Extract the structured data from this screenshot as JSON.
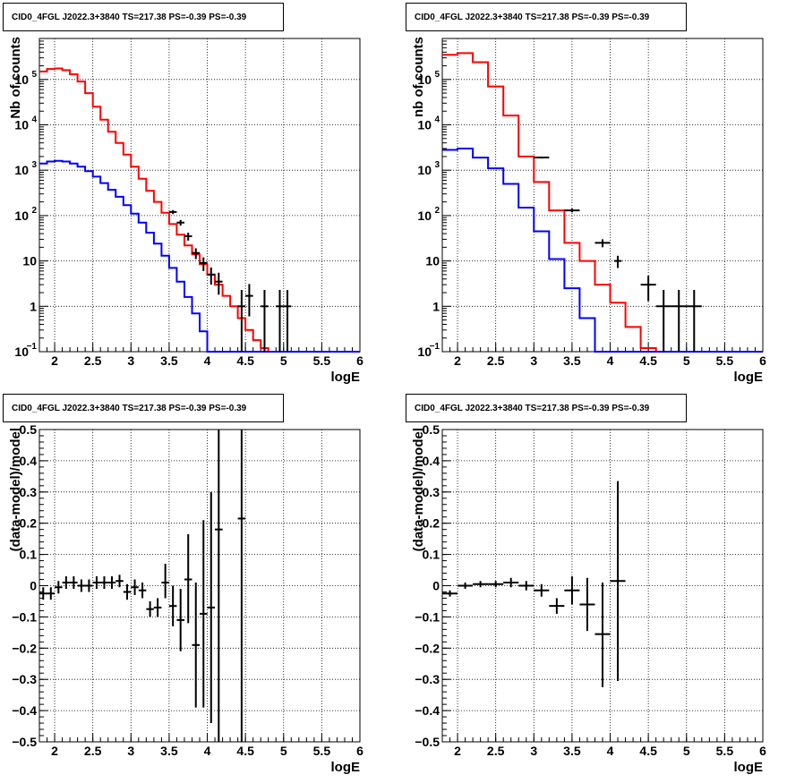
{
  "chart_data": [
    {
      "id": "spectrum_left",
      "type": "line",
      "title": "CID0_4FGL J2022.3+3840 TS=217.38 PS=-0.39 PS=-0.39",
      "xlabel": "logE",
      "ylabel": "Nb of counts",
      "xlim": [
        1.8,
        6.0
      ],
      "ylim": [
        0.1,
        800000
      ],
      "yscale": "log",
      "grid": true,
      "x_ticks": [
        "2",
        "2.5",
        "3",
        "3.5",
        "4",
        "4.5",
        "5",
        "5.5",
        "6"
      ],
      "y_ticks": [
        {
          "value": 0.1,
          "label": "10",
          "sup": "−1"
        },
        {
          "value": 1,
          "label": "1",
          "sup": ""
        },
        {
          "value": 10,
          "label": "10",
          "sup": ""
        },
        {
          "value": 100,
          "label": "10",
          "sup": "2"
        },
        {
          "value": 1000,
          "label": "10",
          "sup": "3"
        },
        {
          "value": 10000,
          "label": "10",
          "sup": "4"
        },
        {
          "value": 100000,
          "label": "10",
          "sup": "5"
        }
      ],
      "bin_edges": [
        1.8,
        1.9,
        2.0,
        2.1,
        2.2,
        2.3,
        2.4,
        2.5,
        2.6,
        2.7,
        2.8,
        2.9,
        3.0,
        3.1,
        3.2,
        3.3,
        3.4,
        3.5,
        3.6,
        3.7,
        3.8,
        3.9,
        4.0,
        4.1,
        4.2,
        4.3,
        4.4,
        4.5,
        4.6,
        4.7,
        4.8,
        4.9,
        5.0,
        5.1,
        5.2,
        5.3,
        5.4,
        5.5,
        5.6,
        5.7,
        5.8,
        5.9,
        6.0
      ],
      "series": [
        {
          "name": "",
          "color": "#ff0000",
          "style": "hist",
          "values": [
            150000,
            170000,
            175000,
            160000,
            130000,
            90000,
            50000,
            25000,
            13000,
            7000,
            4000,
            2200,
            1200,
            650,
            350,
            200,
            115,
            65,
            38,
            22,
            14,
            8.5,
            5,
            3,
            1.7,
            1,
            0.55,
            0.3,
            0.18,
            0.12,
            0.1,
            0.1,
            0.1,
            0.1,
            0.1,
            0.1,
            0.1,
            0.1,
            0.1,
            0.1,
            0.1,
            0.1
          ]
        },
        {
          "name": "",
          "color": "#0000ff",
          "style": "hist",
          "values": [
            1400,
            1550,
            1600,
            1550,
            1400,
            1200,
            950,
            720,
            520,
            370,
            260,
            170,
            110,
            70,
            42,
            24,
            13,
            7,
            3.5,
            1.6,
            0.7,
            0.28,
            0.1,
            0.1,
            0.1,
            0.1,
            0.1,
            0.1,
            0.1,
            0.1,
            0.1,
            0.1,
            0.1,
            0.1,
            0.1,
            0.1,
            0.1,
            0.1,
            0.1,
            0.1,
            0.1,
            0.1
          ]
        },
        {
          "name": "",
          "color": "#000000",
          "style": "errors",
          "points": [
            {
              "x": 3.55,
              "xerr": 0.05,
              "y": 120,
              "ylo": 108,
              "yhi": 132
            },
            {
              "x": 3.65,
              "xerr": 0.05,
              "y": 70,
              "ylo": 60,
              "yhi": 80
            },
            {
              "x": 3.75,
              "xerr": 0.05,
              "y": 35,
              "ylo": 28,
              "yhi": 42
            },
            {
              "x": 3.85,
              "xerr": 0.05,
              "y": 15,
              "ylo": 11,
              "yhi": 19
            },
            {
              "x": 3.95,
              "xerr": 0.05,
              "y": 9,
              "ylo": 6,
              "yhi": 12
            },
            {
              "x": 4.05,
              "xerr": 0.05,
              "y": 5,
              "ylo": 3,
              "yhi": 7.2
            },
            {
              "x": 4.15,
              "xerr": 0.05,
              "y": 3.5,
              "ylo": 1.8,
              "yhi": 5.5
            },
            {
              "x": 4.45,
              "xerr": 0.05,
              "y": 1,
              "ylo": 0.1,
              "yhi": 2.3
            },
            {
              "x": 4.55,
              "xerr": 0.05,
              "y": 1.7,
              "ylo": 0.6,
              "yhi": 3.1
            },
            {
              "x": 4.75,
              "xerr": 0.05,
              "y": 1,
              "ylo": 0.1,
              "yhi": 2.3
            },
            {
              "x": 4.95,
              "xerr": 0.05,
              "y": 1,
              "ylo": 0.1,
              "yhi": 2.3
            },
            {
              "x": 5.05,
              "xerr": 0.05,
              "y": 1,
              "ylo": 0.1,
              "yhi": 2.3
            }
          ]
        }
      ]
    },
    {
      "id": "spectrum_right",
      "type": "line",
      "title": "CID0_4FGL J2022.3+3840 TS=217.38 PS=-0.39 PS=-0.39",
      "xlabel": "logE",
      "ylabel": "nb of counts",
      "xlim": [
        1.8,
        6.0
      ],
      "ylim": [
        0.1,
        800000
      ],
      "yscale": "log",
      "grid": true,
      "x_ticks": [
        "2",
        "2.5",
        "3",
        "3.5",
        "4",
        "4.5",
        "5",
        "5.5",
        "6"
      ],
      "y_ticks": [
        {
          "value": 0.1,
          "label": "10",
          "sup": "−1"
        },
        {
          "value": 1,
          "label": "1",
          "sup": ""
        },
        {
          "value": 10,
          "label": "10",
          "sup": ""
        },
        {
          "value": 100,
          "label": "10",
          "sup": "2"
        },
        {
          "value": 1000,
          "label": "10",
          "sup": "3"
        },
        {
          "value": 10000,
          "label": "10",
          "sup": "4"
        },
        {
          "value": 100000,
          "label": "10",
          "sup": "5"
        }
      ],
      "bin_edges": [
        1.8,
        2.0,
        2.2,
        2.4,
        2.6,
        2.8,
        3.0,
        3.2,
        3.4,
        3.6,
        3.8,
        4.0,
        4.2,
        4.4,
        4.6,
        4.8,
        5.0,
        5.2,
        5.4,
        5.6,
        5.8,
        6.0
      ],
      "series": [
        {
          "name": "",
          "color": "#ff0000",
          "style": "hist",
          "values": [
            350000,
            380000,
            240000,
            70000,
            16000,
            2000,
            550,
            130,
            25,
            10,
            3,
            1.2,
            0.35,
            0.12,
            0.1,
            0.1,
            0.1,
            0.1,
            0.1,
            0.1,
            0.1
          ]
        },
        {
          "name": "",
          "color": "#0000ff",
          "style": "hist",
          "values": [
            2800,
            3000,
            1900,
            1100,
            500,
            150,
            45,
            11,
            2.5,
            0.55,
            0.1,
            0.1,
            0.1,
            0.1,
            0.1,
            0.1,
            0.1,
            0.1,
            0.1,
            0.1,
            0.1
          ]
        },
        {
          "name": "",
          "color": "#000000",
          "style": "errors",
          "points": [
            {
              "x": 3.1,
              "xerr": 0.1,
              "y": 1900,
              "ylo": 1800,
              "yhi": 2000
            },
            {
              "x": 3.5,
              "xerr": 0.1,
              "y": 130,
              "ylo": 118,
              "yhi": 142
            },
            {
              "x": 3.9,
              "xerr": 0.1,
              "y": 25,
              "ylo": 20,
              "yhi": 30
            },
            {
              "x": 4.1,
              "xerr": 0.05,
              "y": 10,
              "ylo": 7,
              "yhi": 13
            },
            {
              "x": 4.5,
              "xerr": 0.1,
              "y": 3,
              "ylo": 1.3,
              "yhi": 4.7
            },
            {
              "x": 4.7,
              "xerr": 0.1,
              "y": 1,
              "ylo": 0.1,
              "yhi": 2.3
            },
            {
              "x": 4.9,
              "xerr": 0.1,
              "y": 1,
              "ylo": 0.1,
              "yhi": 2.3
            },
            {
              "x": 5.1,
              "xerr": 0.1,
              "y": 1,
              "ylo": 0.1,
              "yhi": 2.3
            }
          ]
        }
      ]
    },
    {
      "id": "residual_left",
      "type": "scatter",
      "title": "CID0_4FGL J2022.3+3840 TS=217.38 PS=-0.39 PS=-0.39",
      "xlabel": "logE",
      "ylabel": "(data-model)/model",
      "xlim": [
        1.8,
        6.0
      ],
      "ylim": [
        -0.5,
        0.5
      ],
      "yscale": "linear",
      "grid": true,
      "x_ticks": [
        "2",
        "2.5",
        "3",
        "3.5",
        "4",
        "4.5",
        "5",
        "5.5",
        "6"
      ],
      "y_ticks": [
        {
          "value": -0.5,
          "label": "−0.5",
          "sup": ""
        },
        {
          "value": -0.4,
          "label": "−0.4",
          "sup": ""
        },
        {
          "value": -0.3,
          "label": "−0.3",
          "sup": ""
        },
        {
          "value": -0.2,
          "label": "−0.2",
          "sup": ""
        },
        {
          "value": -0.1,
          "label": "−0.1",
          "sup": ""
        },
        {
          "value": 0,
          "label": "0",
          "sup": ""
        },
        {
          "value": 0.1,
          "label": "0.1",
          "sup": ""
        },
        {
          "value": 0.2,
          "label": "0.2",
          "sup": ""
        },
        {
          "value": 0.3,
          "label": "0.3",
          "sup": ""
        },
        {
          "value": 0.4,
          "label": "0.4",
          "sup": ""
        },
        {
          "value": 0.5,
          "label": "0.5",
          "sup": ""
        }
      ],
      "series": [
        {
          "name": "",
          "color": "#000000",
          "style": "errors",
          "points": [
            {
              "x": 1.85,
              "xerr": 0.05,
              "y": -0.025,
              "ylo": -0.045,
              "yhi": -0.005
            },
            {
              "x": 1.95,
              "xerr": 0.05,
              "y": -0.025,
              "ylo": -0.045,
              "yhi": -0.005
            },
            {
              "x": 2.05,
              "xerr": 0.05,
              "y": -0.005,
              "ylo": -0.025,
              "yhi": 0.015
            },
            {
              "x": 2.15,
              "xerr": 0.05,
              "y": 0.01,
              "ylo": -0.01,
              "yhi": 0.03
            },
            {
              "x": 2.25,
              "xerr": 0.05,
              "y": 0.01,
              "ylo": -0.01,
              "yhi": 0.03
            },
            {
              "x": 2.35,
              "xerr": 0.05,
              "y": 0.0,
              "ylo": -0.02,
              "yhi": 0.02
            },
            {
              "x": 2.45,
              "xerr": 0.05,
              "y": 0.0,
              "ylo": -0.02,
              "yhi": 0.02
            },
            {
              "x": 2.55,
              "xerr": 0.05,
              "y": 0.01,
              "ylo": -0.01,
              "yhi": 0.03
            },
            {
              "x": 2.65,
              "xerr": 0.05,
              "y": 0.01,
              "ylo": -0.01,
              "yhi": 0.03
            },
            {
              "x": 2.75,
              "xerr": 0.05,
              "y": 0.01,
              "ylo": -0.01,
              "yhi": 0.03
            },
            {
              "x": 2.85,
              "xerr": 0.05,
              "y": 0.015,
              "ylo": -0.005,
              "yhi": 0.035
            },
            {
              "x": 2.95,
              "xerr": 0.05,
              "y": -0.02,
              "ylo": -0.045,
              "yhi": 0.005
            },
            {
              "x": 3.05,
              "xerr": 0.05,
              "y": -0.005,
              "ylo": -0.03,
              "yhi": 0.02
            },
            {
              "x": 3.15,
              "xerr": 0.05,
              "y": -0.015,
              "ylo": -0.04,
              "yhi": 0.01
            },
            {
              "x": 3.25,
              "xerr": 0.05,
              "y": -0.075,
              "ylo": -0.1,
              "yhi": -0.05
            },
            {
              "x": 3.35,
              "xerr": 0.05,
              "y": -0.07,
              "ylo": -0.1,
              "yhi": -0.04
            },
            {
              "x": 3.45,
              "xerr": 0.05,
              "y": 0.01,
              "ylo": -0.04,
              "yhi": 0.07
            },
            {
              "x": 3.55,
              "xerr": 0.05,
              "y": -0.065,
              "ylo": -0.13,
              "yhi": 0.0
            },
            {
              "x": 3.65,
              "xerr": 0.05,
              "y": -0.11,
              "ylo": -0.21,
              "yhi": -0.01
            },
            {
              "x": 3.75,
              "xerr": 0.05,
              "y": 0.02,
              "ylo": -0.12,
              "yhi": 0.165
            },
            {
              "x": 3.85,
              "xerr": 0.05,
              "y": -0.19,
              "ylo": -0.39,
              "yhi": 0.01
            },
            {
              "x": 3.95,
              "xerr": 0.05,
              "y": -0.09,
              "ylo": -0.39,
              "yhi": 0.21
            },
            {
              "x": 4.05,
              "xerr": 0.05,
              "y": -0.07,
              "ylo": -0.44,
              "yhi": 0.3
            },
            {
              "x": 4.15,
              "xerr": 0.05,
              "y": 0.18,
              "ylo": -0.5,
              "yhi": 0.5
            },
            {
              "x": 4.45,
              "xerr": 0.05,
              "y": 0.215,
              "ylo": -0.5,
              "yhi": 0.5
            }
          ]
        }
      ]
    },
    {
      "id": "residual_right",
      "type": "scatter",
      "title": "CID0_4FGL J2022.3+3840 TS=217.38 PS=-0.39 PS=-0.39",
      "xlabel": "logE",
      "ylabel": "(data-model)/model",
      "xlim": [
        1.8,
        6.0
      ],
      "ylim": [
        -0.5,
        0.5
      ],
      "yscale": "linear",
      "grid": true,
      "x_ticks": [
        "2",
        "2.5",
        "3",
        "3.5",
        "4",
        "4.5",
        "5",
        "5.5",
        "6"
      ],
      "y_ticks": [
        {
          "value": -0.5,
          "label": "−0.5",
          "sup": ""
        },
        {
          "value": -0.4,
          "label": "−0.4",
          "sup": ""
        },
        {
          "value": -0.3,
          "label": "−0.3",
          "sup": ""
        },
        {
          "value": -0.2,
          "label": "−0.2",
          "sup": ""
        },
        {
          "value": -0.1,
          "label": "−0.1",
          "sup": ""
        },
        {
          "value": 0,
          "label": "0",
          "sup": ""
        },
        {
          "value": 0.1,
          "label": "0.1",
          "sup": ""
        },
        {
          "value": 0.2,
          "label": "0.2",
          "sup": ""
        },
        {
          "value": 0.3,
          "label": "0.3",
          "sup": ""
        },
        {
          "value": 0.4,
          "label": "0.4",
          "sup": ""
        },
        {
          "value": 0.5,
          "label": "0.5",
          "sup": ""
        }
      ],
      "series": [
        {
          "name": "",
          "color": "#000000",
          "style": "errors",
          "points": [
            {
              "x": 1.9,
              "xerr": 0.1,
              "y": -0.025,
              "ylo": -0.035,
              "yhi": -0.015
            },
            {
              "x": 2.1,
              "xerr": 0.1,
              "y": 0.0,
              "ylo": -0.01,
              "yhi": 0.01
            },
            {
              "x": 2.3,
              "xerr": 0.1,
              "y": 0.005,
              "ylo": -0.005,
              "yhi": 0.015
            },
            {
              "x": 2.5,
              "xerr": 0.1,
              "y": 0.005,
              "ylo": -0.005,
              "yhi": 0.015
            },
            {
              "x": 2.7,
              "xerr": 0.1,
              "y": 0.01,
              "ylo": -0.005,
              "yhi": 0.025
            },
            {
              "x": 2.9,
              "xerr": 0.1,
              "y": 0.0,
              "ylo": -0.015,
              "yhi": 0.015
            },
            {
              "x": 3.1,
              "xerr": 0.1,
              "y": -0.015,
              "ylo": -0.035,
              "yhi": 0.005
            },
            {
              "x": 3.3,
              "xerr": 0.1,
              "y": -0.065,
              "ylo": -0.09,
              "yhi": -0.04
            },
            {
              "x": 3.5,
              "xerr": 0.1,
              "y": -0.015,
              "ylo": -0.06,
              "yhi": 0.03
            },
            {
              "x": 3.7,
              "xerr": 0.1,
              "y": -0.06,
              "ylo": -0.145,
              "yhi": 0.025
            },
            {
              "x": 3.9,
              "xerr": 0.1,
              "y": -0.155,
              "ylo": -0.325,
              "yhi": 0.01
            },
            {
              "x": 4.1,
              "xerr": 0.1,
              "y": 0.015,
              "ylo": -0.305,
              "yhi": 0.335
            }
          ]
        }
      ]
    }
  ]
}
